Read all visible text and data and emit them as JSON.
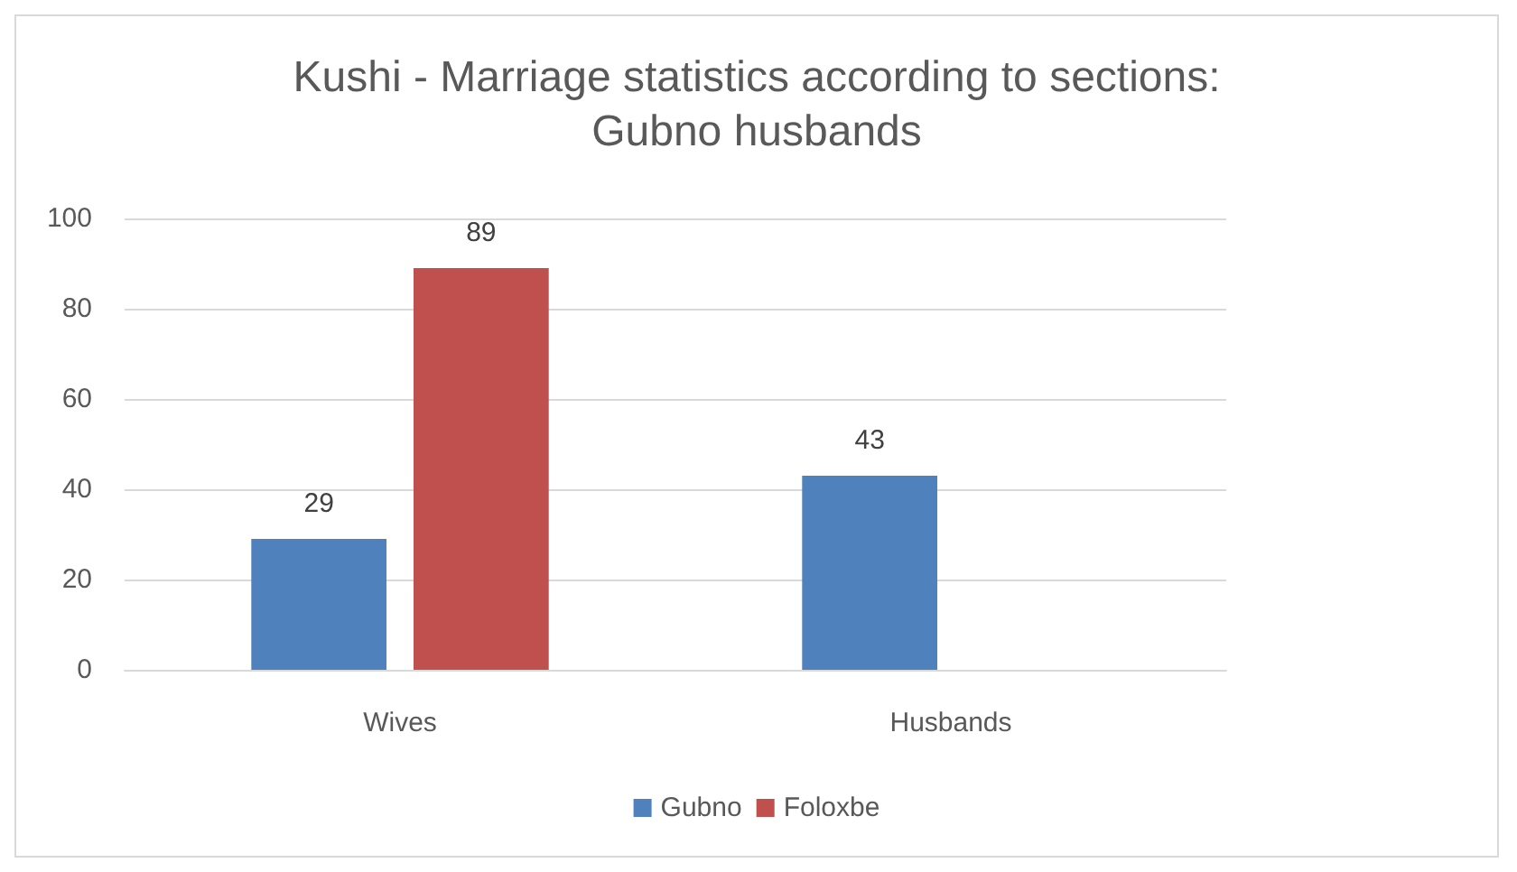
{
  "chart_data": {
    "type": "bar",
    "title": "Kushi - Marriage statistics according to sections:\nGubno husbands",
    "categories": [
      "Wives",
      "Husbands"
    ],
    "series": [
      {
        "name": "Gubno",
        "color": "#4f81bd",
        "values": [
          29,
          43
        ]
      },
      {
        "name": "Foloxbe",
        "color": "#c0504d",
        "values": [
          89,
          null
        ]
      }
    ],
    "ylim": [
      0,
      100
    ],
    "yticks": [
      0,
      20,
      40,
      60,
      80,
      100
    ],
    "grid": "y",
    "legend": "bottom",
    "data_labels": true
  }
}
